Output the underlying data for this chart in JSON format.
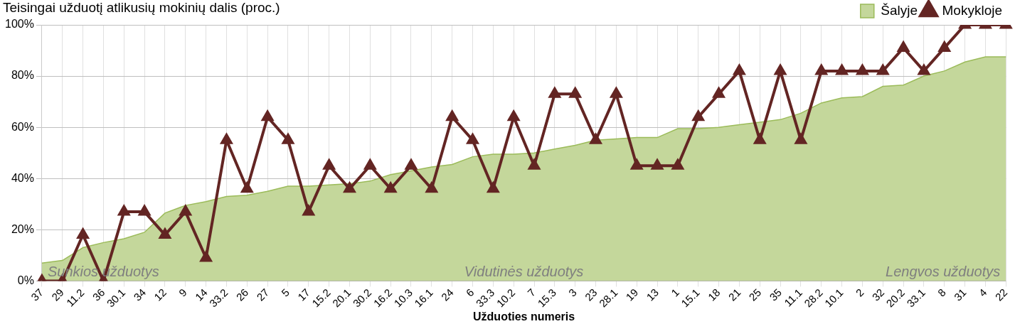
{
  "chart_data": {
    "type": "line",
    "title": "Teisingai užduotį atlikusių mokinių dalis (proc.)",
    "xlabel": "Užduoties numeris",
    "categories": [
      "37",
      "29",
      "11.2",
      "36",
      "30.1",
      "34",
      "12",
      "9",
      "14",
      "33.2",
      "26",
      "27",
      "5",
      "17",
      "15.2",
      "20.1",
      "30.2",
      "16.2",
      "10.3",
      "16.1",
      "24",
      "6",
      "33.3",
      "10.2",
      "7",
      "15.3",
      "3",
      "23",
      "28.1",
      "19",
      "13",
      "1",
      "15.1",
      "18",
      "21",
      "25",
      "35",
      "11.1",
      "28.2",
      "10.1",
      "2",
      "32",
      "20.2",
      "33.1",
      "8",
      "31",
      "4",
      "22"
    ],
    "series": [
      {
        "name": "Šalyje",
        "type": "area",
        "color": "#c4d79b",
        "values": [
          7,
          8,
          13,
          15,
          16.5,
          19,
          26.5,
          29.5,
          31,
          33,
          33.5,
          35,
          37,
          37,
          37.5,
          38,
          39,
          41.5,
          43,
          44.5,
          45.5,
          48.5,
          49.5,
          49.5,
          50,
          51.5,
          53,
          55,
          55.5,
          56,
          56,
          59.5,
          59.5,
          60,
          61,
          62,
          63,
          65.5,
          69.5,
          71.5,
          72,
          76,
          76.5,
          80,
          82,
          85.5,
          87.5,
          87.5
        ]
      },
      {
        "name": "Mokykloje",
        "color": "#632523",
        "marker": "triangle",
        "values": [
          0,
          0,
          18,
          0,
          27,
          27,
          18,
          27,
          9,
          55,
          36,
          64,
          55,
          27,
          45,
          36,
          45,
          36,
          45,
          36,
          64,
          55,
          36,
          64,
          45,
          73,
          73,
          55,
          73,
          45,
          45,
          45,
          64,
          73,
          82,
          55,
          82,
          55,
          82,
          82,
          82,
          82,
          91,
          82,
          91,
          100,
          100,
          100
        ]
      }
    ],
    "ylim": [
      0,
      100
    ],
    "yticks": [
      {
        "value": 0,
        "label": "0%"
      },
      {
        "value": 20,
        "label": "20%"
      },
      {
        "value": 40,
        "label": "40%"
      },
      {
        "value": 60,
        "label": "60%"
      },
      {
        "value": 80,
        "label": "80%"
      },
      {
        "value": 100,
        "label": "100%"
      }
    ],
    "grid": true,
    "legend": "top right",
    "annotations": [
      "Sunkios užduotys",
      "Vidutinės užduotys",
      "Lengvos užduotys"
    ]
  }
}
